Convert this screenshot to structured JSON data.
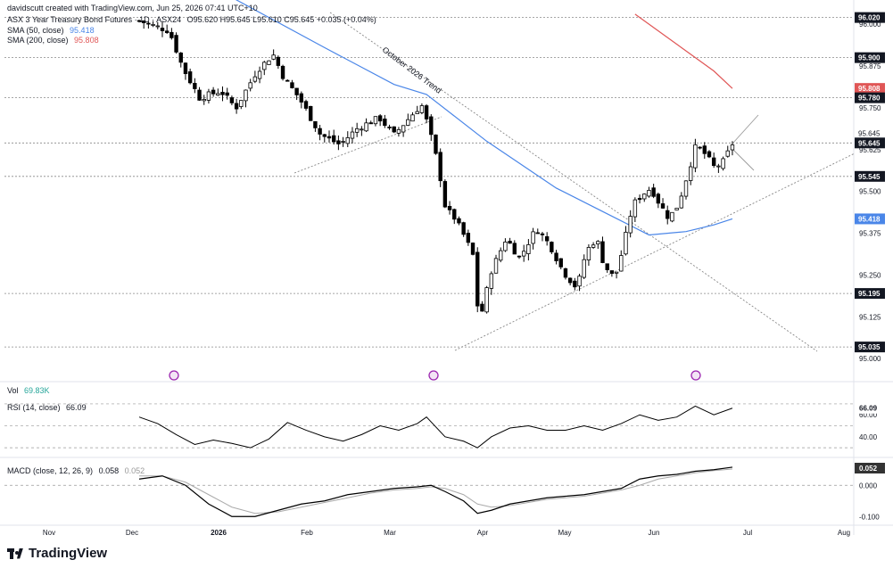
{
  "header": {
    "created_by": "davidscutt created with TradingView.com, Jun 25, 2026 07:41 UTC+10",
    "symbol_line": "ASX 3 Year Treasury Bond Futures · 1D · ASX24",
    "ohlc": "O95.620  H95.645  L95.610  C95.645  +0.035 (+0.04%)",
    "sma50_label": "SMA (50, close)",
    "sma50_value": "95.418",
    "sma200_label": "SMA (200, close)",
    "sma200_value": "95.808"
  },
  "colors": {
    "up": "#ffffff",
    "down": "#000000",
    "sma50": "#4a86e8",
    "sma200": "#e05656",
    "rsi": "#000000",
    "macd": "#000000",
    "signal": "#aaaaaa",
    "event_icon": "#9c27b0"
  },
  "branding": {
    "logo_text": "TradingView"
  },
  "trend_annotation": "October 2026 Trend",
  "chart_data": [
    {
      "type": "candlestick",
      "title": "ASX 3 Year Treasury Bond Futures · 1D · ASX24",
      "ylim": [
        95.0,
        96.03
      ],
      "x_ticks": [
        "Nov",
        "Dec",
        "2026",
        "Feb",
        "Mar",
        "Apr",
        "May",
        "Jun",
        "Jul",
        "Aug"
      ],
      "y_ticks": [
        "96.000",
        "95.875",
        "95.750",
        "95.625",
        "95.500",
        "95.375",
        "95.250",
        "95.125",
        "95.000"
      ],
      "price_tags": [
        {
          "value": "96.020",
          "style": "dark"
        },
        {
          "value": "95.900",
          "style": "dark"
        },
        {
          "value": "95.808",
          "style": "red"
        },
        {
          "value": "95.780",
          "style": "dark"
        },
        {
          "value": "95.645",
          "style": "dark"
        },
        {
          "value": "95.545",
          "style": "dark"
        },
        {
          "value": "95.418",
          "style": "blue"
        },
        {
          "value": "95.195",
          "style": "dark"
        },
        {
          "value": "95.035",
          "style": "dark"
        }
      ],
      "price_labels": [
        "95.645"
      ],
      "horizontal_levels": [
        96.02,
        95.9,
        95.78,
        95.645,
        95.545,
        95.195,
        95.035
      ],
      "close_points": [
        {
          "x": 0.0,
          "y": 96.01
        },
        {
          "x": 6.5,
          "y": 95.98
        },
        {
          "x": 9.4,
          "y": 95.87
        },
        {
          "x": 13.0,
          "y": 95.78
        },
        {
          "x": 17.6,
          "y": 95.8
        },
        {
          "x": 20.9,
          "y": 95.75
        },
        {
          "x": 25.4,
          "y": 95.86
        },
        {
          "x": 28.9,
          "y": 95.91
        },
        {
          "x": 31.2,
          "y": 95.84
        },
        {
          "x": 34.5,
          "y": 95.78
        },
        {
          "x": 39.1,
          "y": 95.67
        },
        {
          "x": 43.3,
          "y": 95.64
        },
        {
          "x": 47.2,
          "y": 95.69
        },
        {
          "x": 51.8,
          "y": 95.72
        },
        {
          "x": 55.0,
          "y": 95.67
        },
        {
          "x": 58.3,
          "y": 95.72
        },
        {
          "x": 60.9,
          "y": 95.76
        },
        {
          "x": 62.5,
          "y": 95.69
        },
        {
          "x": 64.5,
          "y": 95.58
        },
        {
          "x": 66.1,
          "y": 95.45
        },
        {
          "x": 68.1,
          "y": 95.42
        },
        {
          "x": 70.4,
          "y": 95.36
        },
        {
          "x": 72.3,
          "y": 95.3
        },
        {
          "x": 73.3,
          "y": 95.1
        },
        {
          "x": 75.9,
          "y": 95.26
        },
        {
          "x": 79.2,
          "y": 95.36
        },
        {
          "x": 82.1,
          "y": 95.3
        },
        {
          "x": 85.7,
          "y": 95.39
        },
        {
          "x": 88.6,
          "y": 95.34
        },
        {
          "x": 91.5,
          "y": 95.26
        },
        {
          "x": 94.5,
          "y": 95.21
        },
        {
          "x": 96.4,
          "y": 95.32
        },
        {
          "x": 98.7,
          "y": 95.36
        },
        {
          "x": 100.3,
          "y": 95.28
        },
        {
          "x": 102.6,
          "y": 95.24
        },
        {
          "x": 104.2,
          "y": 95.32
        },
        {
          "x": 106.5,
          "y": 95.46
        },
        {
          "x": 108.5,
          "y": 95.49
        },
        {
          "x": 110.4,
          "y": 95.51
        },
        {
          "x": 112.4,
          "y": 95.46
        },
        {
          "x": 114.3,
          "y": 95.42
        },
        {
          "x": 116.3,
          "y": 95.46
        },
        {
          "x": 118.3,
          "y": 95.55
        },
        {
          "x": 120.2,
          "y": 95.64
        },
        {
          "x": 122.2,
          "y": 95.61
        },
        {
          "x": 124.2,
          "y": 95.57
        },
        {
          "x": 126.1,
          "y": 95.59
        },
        {
          "x": 128.1,
          "y": 95.645
        }
      ],
      "sma50_points": [
        {
          "x": 0,
          "y": 96.2
        },
        {
          "x": 20,
          "y": 96.08
        },
        {
          "x": 40,
          "y": 95.93
        },
        {
          "x": 55,
          "y": 95.82
        },
        {
          "x": 62,
          "y": 95.79
        },
        {
          "x": 75,
          "y": 95.65
        },
        {
          "x": 90,
          "y": 95.51
        },
        {
          "x": 100,
          "y": 95.44
        },
        {
          "x": 110,
          "y": 95.37
        },
        {
          "x": 118,
          "y": 95.38
        },
        {
          "x": 124,
          "y": 95.4
        },
        {
          "x": 128,
          "y": 95.418
        }
      ],
      "sma200_points": [
        {
          "x": 107,
          "y": 96.03
        },
        {
          "x": 117,
          "y": 95.93
        },
        {
          "x": 124,
          "y": 95.86
        },
        {
          "x": 128,
          "y": 95.808
        }
      ]
    },
    {
      "type": "bar",
      "title": "Vol",
      "values": [
        69.83
      ],
      "value_label": "69.83K"
    },
    {
      "type": "line",
      "title": "RSI (14, close)",
      "value_label": "66.09",
      "ylim": [
        20,
        75
      ],
      "y_ticks": [
        "60.00",
        "40.00"
      ],
      "levels": [
        70,
        50,
        30
      ],
      "series": [
        {
          "values": [
            {
              "x": 0,
              "y": 58
            },
            {
              "x": 4,
              "y": 52
            },
            {
              "x": 8,
              "y": 42
            },
            {
              "x": 12,
              "y": 33
            },
            {
              "x": 16,
              "y": 37
            },
            {
              "x": 20,
              "y": 34
            },
            {
              "x": 24,
              "y": 30
            },
            {
              "x": 28,
              "y": 38
            },
            {
              "x": 32,
              "y": 53
            },
            {
              "x": 36,
              "y": 46
            },
            {
              "x": 40,
              "y": 40
            },
            {
              "x": 44,
              "y": 36
            },
            {
              "x": 48,
              "y": 42
            },
            {
              "x": 52,
              "y": 50
            },
            {
              "x": 56,
              "y": 46
            },
            {
              "x": 60,
              "y": 52
            },
            {
              "x": 62,
              "y": 58
            },
            {
              "x": 66,
              "y": 40
            },
            {
              "x": 70,
              "y": 36
            },
            {
              "x": 73,
              "y": 30
            },
            {
              "x": 76,
              "y": 40
            },
            {
              "x": 80,
              "y": 48
            },
            {
              "x": 84,
              "y": 50
            },
            {
              "x": 88,
              "y": 46
            },
            {
              "x": 92,
              "y": 46
            },
            {
              "x": 96,
              "y": 50
            },
            {
              "x": 100,
              "y": 46
            },
            {
              "x": 104,
              "y": 52
            },
            {
              "x": 108,
              "y": 60
            },
            {
              "x": 112,
              "y": 55
            },
            {
              "x": 116,
              "y": 58
            },
            {
              "x": 120,
              "y": 68
            },
            {
              "x": 124,
              "y": 60
            },
            {
              "x": 128,
              "y": 66.09
            }
          ]
        }
      ]
    },
    {
      "type": "line",
      "title": "MACD (close, 12, 26, 9)",
      "value_labels": [
        "0.058",
        "0.052"
      ],
      "ylim": [
        -0.13,
        0.08
      ],
      "y_ticks": [
        "0.000",
        "-0.100"
      ],
      "series": [
        {
          "values": [
            {
              "x": 0,
              "y": 0.02
            },
            {
              "x": 5,
              "y": 0.03
            },
            {
              "x": 10,
              "y": 0.0
            },
            {
              "x": 15,
              "y": -0.06
            },
            {
              "x": 20,
              "y": -0.1
            },
            {
              "x": 25,
              "y": -0.1
            },
            {
              "x": 30,
              "y": -0.08
            },
            {
              "x": 35,
              "y": -0.06
            },
            {
              "x": 40,
              "y": -0.05
            },
            {
              "x": 45,
              "y": -0.03
            },
            {
              "x": 50,
              "y": -0.02
            },
            {
              "x": 55,
              "y": -0.01
            },
            {
              "x": 60,
              "y": -0.005
            },
            {
              "x": 63,
              "y": 0.0
            },
            {
              "x": 66,
              "y": -0.02
            },
            {
              "x": 70,
              "y": -0.05
            },
            {
              "x": 73,
              "y": -0.09
            },
            {
              "x": 76,
              "y": -0.08
            },
            {
              "x": 80,
              "y": -0.06
            },
            {
              "x": 84,
              "y": -0.05
            },
            {
              "x": 88,
              "y": -0.04
            },
            {
              "x": 92,
              "y": -0.035
            },
            {
              "x": 96,
              "y": -0.03
            },
            {
              "x": 100,
              "y": -0.02
            },
            {
              "x": 104,
              "y": -0.01
            },
            {
              "x": 108,
              "y": 0.02
            },
            {
              "x": 112,
              "y": 0.03
            },
            {
              "x": 116,
              "y": 0.035
            },
            {
              "x": 120,
              "y": 0.045
            },
            {
              "x": 124,
              "y": 0.05
            },
            {
              "x": 128,
              "y": 0.058
            }
          ]
        },
        {
          "values": [
            {
              "x": 0,
              "y": 0.03
            },
            {
              "x": 5,
              "y": 0.03
            },
            {
              "x": 10,
              "y": 0.01
            },
            {
              "x": 15,
              "y": -0.03
            },
            {
              "x": 20,
              "y": -0.07
            },
            {
              "x": 25,
              "y": -0.09
            },
            {
              "x": 30,
              "y": -0.085
            },
            {
              "x": 35,
              "y": -0.07
            },
            {
              "x": 40,
              "y": -0.055
            },
            {
              "x": 45,
              "y": -0.04
            },
            {
              "x": 50,
              "y": -0.025
            },
            {
              "x": 55,
              "y": -0.015
            },
            {
              "x": 60,
              "y": -0.01
            },
            {
              "x": 63,
              "y": -0.005
            },
            {
              "x": 66,
              "y": -0.01
            },
            {
              "x": 70,
              "y": -0.03
            },
            {
              "x": 73,
              "y": -0.06
            },
            {
              "x": 76,
              "y": -0.07
            },
            {
              "x": 80,
              "y": -0.065
            },
            {
              "x": 84,
              "y": -0.055
            },
            {
              "x": 88,
              "y": -0.045
            },
            {
              "x": 92,
              "y": -0.04
            },
            {
              "x": 96,
              "y": -0.035
            },
            {
              "x": 100,
              "y": -0.025
            },
            {
              "x": 104,
              "y": -0.015
            },
            {
              "x": 108,
              "y": 0.0
            },
            {
              "x": 112,
              "y": 0.02
            },
            {
              "x": 116,
              "y": 0.03
            },
            {
              "x": 120,
              "y": 0.04
            },
            {
              "x": 124,
              "y": 0.047
            },
            {
              "x": 128,
              "y": 0.052
            }
          ]
        }
      ]
    }
  ]
}
